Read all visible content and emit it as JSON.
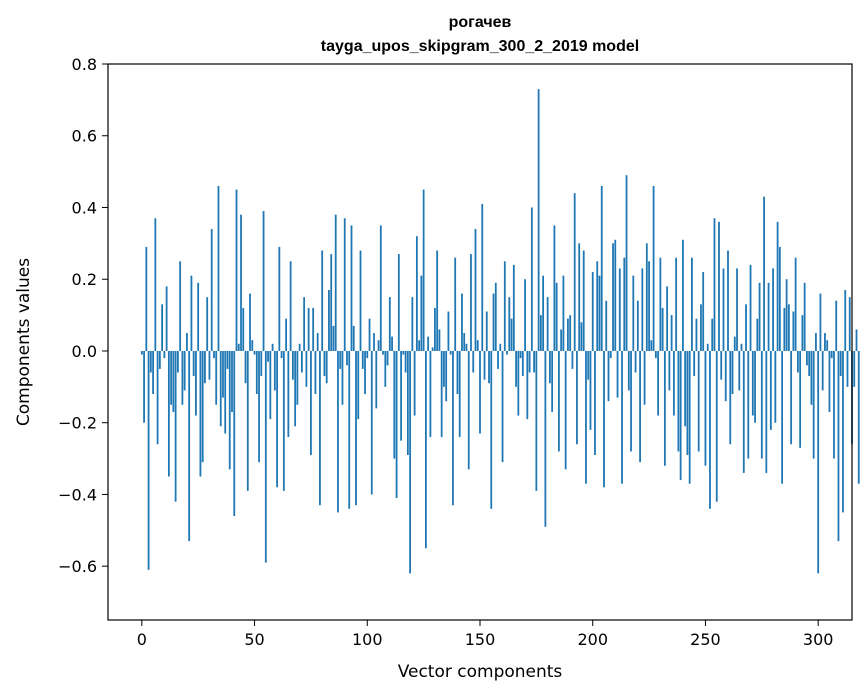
{
  "chart_data": {
    "type": "bar",
    "title": "рогачев",
    "subtitle": "tayga_upos_skipgram_300_2_2019 model",
    "xlabel": "Vector components",
    "ylabel": "Components values",
    "xlim": [
      -15,
      315
    ],
    "ylim": [
      -0.75,
      0.8
    ],
    "xticks": [
      0,
      50,
      100,
      150,
      200,
      250,
      300
    ],
    "xtick_labels": [
      "0",
      "50",
      "100",
      "150",
      "200",
      "250",
      "300"
    ],
    "yticks": [
      -0.6,
      -0.4,
      -0.2,
      0.0,
      0.2,
      0.4,
      0.6,
      0.8
    ],
    "ytick_labels": [
      "−0.6",
      "−0.4",
      "−0.2",
      "0.0",
      "0.2",
      "0.4",
      "0.6",
      "0.8"
    ],
    "grid": false,
    "bar_color": "#1f77b4",
    "x_start": 0,
    "values": [
      -0.01,
      -0.2,
      0.29,
      -0.61,
      -0.06,
      -0.12,
      0.37,
      -0.26,
      -0.05,
      0.13,
      -0.02,
      0.18,
      -0.35,
      -0.15,
      -0.17,
      -0.42,
      -0.06,
      0.25,
      -0.15,
      -0.11,
      0.05,
      -0.53,
      0.21,
      -0.07,
      -0.18,
      0.19,
      -0.35,
      -0.31,
      -0.09,
      0.15,
      -0.08,
      0.34,
      -0.02,
      -0.15,
      0.46,
      -0.21,
      -0.13,
      -0.23,
      -0.05,
      -0.33,
      -0.17,
      -0.46,
      0.45,
      0.02,
      0.38,
      0.12,
      -0.09,
      -0.39,
      0.16,
      0.03,
      -0.01,
      -0.12,
      -0.31,
      -0.07,
      0.39,
      -0.59,
      -0.03,
      -0.19,
      0.02,
      -0.11,
      -0.38,
      0.29,
      -0.02,
      -0.39,
      0.09,
      -0.24,
      0.25,
      -0.08,
      -0.21,
      -0.15,
      0.02,
      -0.06,
      0.15,
      -0.1,
      0.12,
      -0.29,
      0.12,
      -0.12,
      0.05,
      -0.43,
      0.28,
      -0.07,
      -0.09,
      0.17,
      0.27,
      0.07,
      0.38,
      -0.45,
      -0.05,
      -0.15,
      0.37,
      -0.04,
      -0.44,
      0.35,
      0.07,
      -0.43,
      -0.19,
      0.28,
      -0.05,
      -0.12,
      -0.02,
      0.09,
      -0.4,
      0.05,
      -0.16,
      0.03,
      0.35,
      -0.01,
      -0.1,
      -0.04,
      0.15,
      0.04,
      -0.3,
      -0.41,
      0.27,
      -0.25,
      -0.01,
      -0.06,
      -0.29,
      -0.62,
      0.15,
      -0.18,
      0.32,
      0.03,
      0.21,
      0.45,
      -0.55,
      0.04,
      -0.24,
      0.01,
      0.12,
      0.28,
      0.06,
      -0.24,
      -0.1,
      -0.14,
      0.11,
      -0.01,
      -0.43,
      0.26,
      -0.12,
      -0.24,
      0.16,
      0.05,
      0.02,
      -0.33,
      0.27,
      -0.06,
      0.34,
      0.03,
      -0.23,
      0.41,
      -0.08,
      0.11,
      -0.09,
      -0.44,
      0.16,
      0.19,
      -0.05,
      0.02,
      -0.31,
      0.25,
      -0.01,
      0.15,
      0.09,
      0.24,
      -0.1,
      -0.18,
      -0.02,
      -0.07,
      0.2,
      -0.19,
      -0.06,
      0.4,
      -0.06,
      -0.39,
      0.73,
      0.1,
      0.21,
      -0.49,
      0.15,
      -0.09,
      -0.17,
      0.35,
      0.19,
      -0.28,
      0.06,
      0.21,
      -0.33,
      0.09,
      0.1,
      -0.05,
      0.44,
      -0.26,
      0.3,
      0.08,
      0.28,
      -0.37,
      -0.08,
      -0.22,
      0.22,
      -0.29,
      0.25,
      0.21,
      0.46,
      -0.38,
      0.14,
      -0.14,
      -0.02,
      0.3,
      0.31,
      -0.13,
      0.23,
      -0.37,
      0.26,
      0.49,
      -0.11,
      -0.28,
      0.21,
      -0.06,
      0.14,
      -0.31,
      0.23,
      -0.15,
      0.3,
      0.25,
      0.03,
      0.46,
      -0.02,
      -0.18,
      0.26,
      0.12,
      -0.32,
      0.18,
      -0.11,
      0.1,
      -0.18,
      0.26,
      -0.28,
      -0.36,
      0.31,
      -0.21,
      -0.29,
      -0.37,
      0.26,
      -0.07,
      0.09,
      -0.28,
      0.13,
      0.22,
      -0.32,
      0.02,
      -0.44,
      0.09,
      0.37,
      -0.42,
      0.36,
      -0.08,
      0.23,
      -0.14,
      0.28,
      -0.26,
      -0.12,
      0.04,
      0.23,
      -0.11,
      0.02,
      -0.34,
      0.13,
      -0.3,
      0.24,
      -0.18,
      -0.2,
      0.09,
      0.19,
      -0.3,
      0.43,
      -0.34,
      0.19,
      -0.22,
      0.23,
      -0.2,
      0.36,
      0.29,
      -0.37,
      0.12,
      0.2,
      0.13,
      -0.26,
      0.11,
      0.26,
      -0.06,
      -0.27,
      0.1,
      0.19,
      -0.04,
      -0.07,
      -0.15,
      -0.3,
      0.05,
      -0.62,
      0.16,
      -0.11,
      0.05,
      0.03,
      -0.17,
      -0.02,
      -0.3,
      0.14,
      -0.53,
      -0.07,
      -0.45,
      0.17,
      -0.1,
      0.15,
      -0.26,
      -0.1,
      0.06,
      -0.37
    ]
  }
}
